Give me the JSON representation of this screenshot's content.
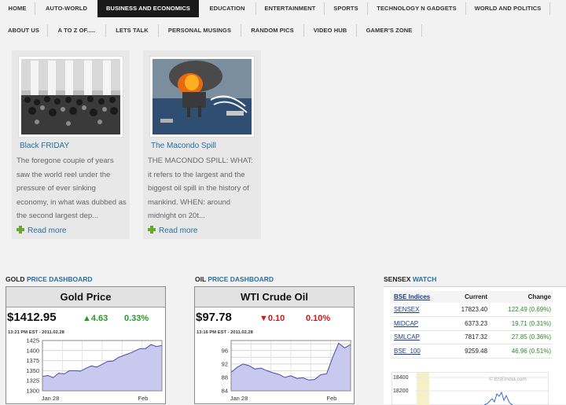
{
  "nav": {
    "row1": [
      "HOME",
      "AUTO-WORLD",
      "BUSINESS AND ECONOMICS",
      "EDUCATION",
      "ENTERTAINMENT",
      "SPORTS",
      "TECHNOLOGY N GADGETS",
      "WORLD AND POLITICS"
    ],
    "row2": [
      "ABOUT US",
      "A TO Z OF.....",
      "LETS TALK",
      "PERSONAL MUSINGS",
      "RANDOM PICS",
      "VIDEO HUB",
      "GAMER'S ZONE"
    ],
    "active": "BUSINESS AND ECONOMICS"
  },
  "posts": [
    {
      "title": "Black FRIDAY",
      "excerpt": "The foregone couple of years saw the world reel under the pressure of ever sinking economy, in what was dubbed as the second largest dep...",
      "read_more": "Read more"
    },
    {
      "title": "The Macondo Spill",
      "excerpt": "THE MACONDO SPILL: WHAT: it refers to the largest and the biggest oil spill in the history of mankind. WHEN: around midnight on 20t...",
      "read_more": "Read more"
    }
  ],
  "gold": {
    "label_prefix": "GOLD",
    "label_link": "PRICE DASHBOARD",
    "heading": "Gold Price",
    "price": "$1412.95",
    "change": "▲4.63",
    "percent": "0.33%",
    "timestamp": "13:21 PM EST - 2011.02.28",
    "colors": {
      "up": "#2a9a2a"
    }
  },
  "oil": {
    "label_prefix": "OIL",
    "label_link": "PRICE DASHBOARD",
    "heading": "WTI Crude Oil",
    "price": "$97.78",
    "change": "▼0.10",
    "percent": "0.10%",
    "timestamp": "13:16 PM EST - 2011.02.28",
    "colors": {
      "down": "#d01616"
    }
  },
  "sensex": {
    "label_prefix": "SENSEX",
    "label_link": "WATCH",
    "table_headers": {
      "name": "BSE Indices",
      "current": "Current",
      "change": "Change"
    },
    "rows": [
      {
        "name": "SENSEX",
        "current": "17823.40",
        "change": "122.49 (0.69%)"
      },
      {
        "name": "MIDCAP",
        "current": "6373.23",
        "change": "19.71 (0.31%)"
      },
      {
        "name": "SMLCAP",
        "current": "7817.32",
        "change": "27.85 (0.36%)"
      },
      {
        "name": "BSE_100",
        "current": "9259.48",
        "change": "46.96 (0.51%)"
      }
    ],
    "mini_chart_ticks": [
      "18400",
      "18200"
    ],
    "watermark": "© BSEIndia.com"
  },
  "chart_data": [
    {
      "type": "area",
      "title": "Gold Price",
      "ylim": [
        1300,
        1425
      ],
      "yticks": [
        1300,
        1325,
        1350,
        1375,
        1400,
        1425
      ],
      "xtick_labels": [
        "Jan 28",
        "Feb"
      ],
      "values": [
        1336,
        1338,
        1333,
        1344,
        1342,
        1350,
        1350,
        1349,
        1356,
        1362,
        1359,
        1366,
        1373,
        1374,
        1383,
        1388,
        1393,
        1399,
        1405,
        1405,
        1415,
        1410,
        1413
      ]
    },
    {
      "type": "area",
      "title": "WTI Crude Oil",
      "ylim": [
        84,
        99
      ],
      "yticks": [
        84,
        86,
        88,
        90,
        92,
        94,
        96,
        98
      ],
      "ytick_labels": [
        "84",
        "88",
        "92",
        "96"
      ],
      "xtick_labels": [
        "Jan 28",
        "Feb"
      ],
      "values": [
        89.5,
        91,
        92,
        91.5,
        90.5,
        90.8,
        90,
        89.4,
        88.9,
        88,
        88.5,
        87.7,
        87.9,
        87.2,
        87.4,
        88.8,
        89.1,
        94,
        98.2,
        96.8,
        97.8
      ]
    }
  ]
}
